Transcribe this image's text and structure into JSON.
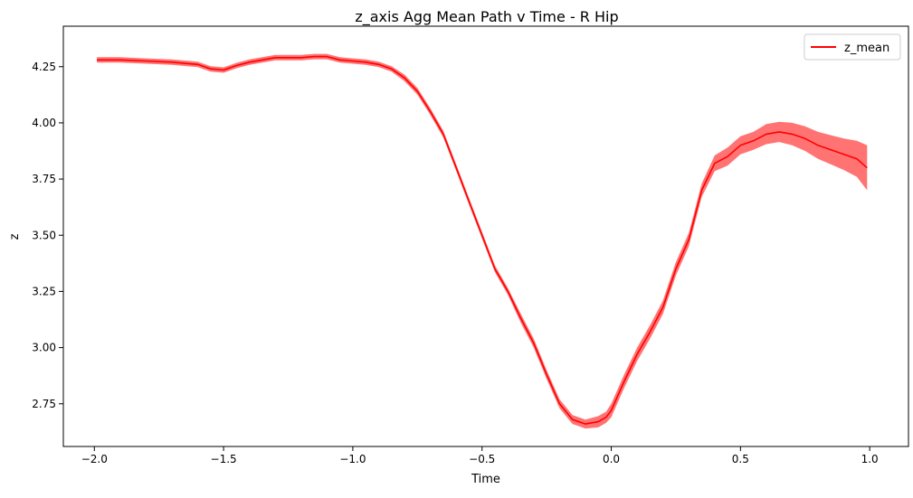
{
  "chart_data": {
    "type": "line",
    "title": "z_axis Agg Mean Path v Time - R Hip",
    "xlabel": "Time",
    "ylabel": "z",
    "xlim": [
      -2.12,
      1.15
    ],
    "ylim": [
      2.56,
      4.43
    ],
    "x_ticks": [
      -2.0,
      -1.5,
      -1.0,
      -0.5,
      0.0,
      0.5,
      1.0
    ],
    "x_tick_labels": [
      "−2.0",
      "−1.5",
      "−1.0",
      "−0.5",
      "0.0",
      "0.5",
      "1.0"
    ],
    "y_ticks": [
      2.75,
      3.0,
      3.25,
      3.5,
      3.75,
      4.0,
      4.25
    ],
    "y_tick_labels": [
      "2.75",
      "3.00",
      "3.25",
      "3.50",
      "3.75",
      "4.00",
      "4.25"
    ],
    "grid": false,
    "legend": {
      "position": "top-right"
    },
    "series": [
      {
        "name": "z_mean",
        "color": "#ff0000",
        "band_color": "#ff0000",
        "x": [
          -1.99,
          -1.9,
          -1.8,
          -1.7,
          -1.6,
          -1.55,
          -1.5,
          -1.45,
          -1.4,
          -1.35,
          -1.3,
          -1.25,
          -1.2,
          -1.15,
          -1.1,
          -1.05,
          -1.0,
          -0.95,
          -0.9,
          -0.85,
          -0.8,
          -0.75,
          -0.7,
          -0.65,
          -0.6,
          -0.55,
          -0.5,
          -0.45,
          -0.4,
          -0.35,
          -0.3,
          -0.25,
          -0.2,
          -0.15,
          -0.1,
          -0.05,
          -0.02,
          0.0,
          0.05,
          0.1,
          0.15,
          0.2,
          0.25,
          0.3,
          0.35,
          0.4,
          0.45,
          0.5,
          0.55,
          0.6,
          0.65,
          0.7,
          0.75,
          0.8,
          0.85,
          0.9,
          0.95,
          0.99
        ],
        "y": [
          4.28,
          4.28,
          4.275,
          4.27,
          4.26,
          4.24,
          4.235,
          4.255,
          4.27,
          4.28,
          4.29,
          4.29,
          4.29,
          4.295,
          4.295,
          4.28,
          4.275,
          4.27,
          4.26,
          4.24,
          4.2,
          4.14,
          4.05,
          3.95,
          3.8,
          3.65,
          3.5,
          3.35,
          3.25,
          3.13,
          3.02,
          2.88,
          2.75,
          2.68,
          2.66,
          2.67,
          2.69,
          2.72,
          2.85,
          2.97,
          3.07,
          3.18,
          3.35,
          3.48,
          3.7,
          3.82,
          3.85,
          3.9,
          3.92,
          3.95,
          3.96,
          3.95,
          3.93,
          3.9,
          3.88,
          3.86,
          3.84,
          3.8
        ],
        "band": [
          0.012,
          0.012,
          0.012,
          0.012,
          0.012,
          0.012,
          0.012,
          0.012,
          0.012,
          0.012,
          0.012,
          0.012,
          0.012,
          0.012,
          0.012,
          0.012,
          0.012,
          0.012,
          0.012,
          0.012,
          0.015,
          0.015,
          0.015,
          0.015,
          0.015,
          0.015,
          0.015,
          0.015,
          0.015,
          0.02,
          0.02,
          0.02,
          0.02,
          0.02,
          0.02,
          0.025,
          0.025,
          0.03,
          0.03,
          0.03,
          0.03,
          0.03,
          0.03,
          0.03,
          0.03,
          0.035,
          0.04,
          0.04,
          0.04,
          0.045,
          0.045,
          0.05,
          0.055,
          0.06,
          0.065,
          0.07,
          0.08,
          0.1
        ]
      }
    ]
  }
}
